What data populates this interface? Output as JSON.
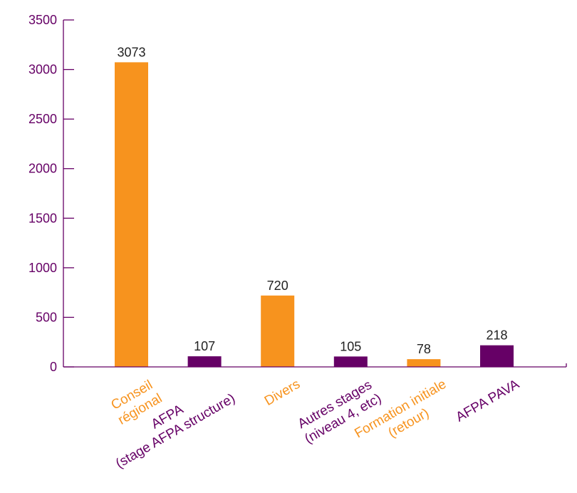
{
  "chart_data": {
    "type": "bar",
    "categories": [
      [
        "Conseil",
        "régional"
      ],
      [
        "AFPA",
        "(stage AFPA structure)"
      ],
      [
        "Divers"
      ],
      [
        "Autres stages",
        "(niveau 4, etc)"
      ],
      [
        "Formation initiale",
        "(retour)"
      ],
      [
        "AFPA PAVA"
      ]
    ],
    "values": [
      3073,
      107,
      720,
      105,
      78,
      218
    ],
    "bar_colors": [
      "#F7931E",
      "#660066",
      "#F7931E",
      "#660066",
      "#F7931E",
      "#660066"
    ],
    "label_colors": [
      "#F7931E",
      "#660066",
      "#F7931E",
      "#660066",
      "#F7931E",
      "#660066"
    ],
    "ylim": [
      0,
      3500
    ],
    "yticks": [
      0,
      500,
      1000,
      1500,
      2000,
      2500,
      3000,
      3500
    ],
    "axis_color": "#660066",
    "title": "",
    "xlabel": "",
    "ylabel": "",
    "grid": false
  }
}
